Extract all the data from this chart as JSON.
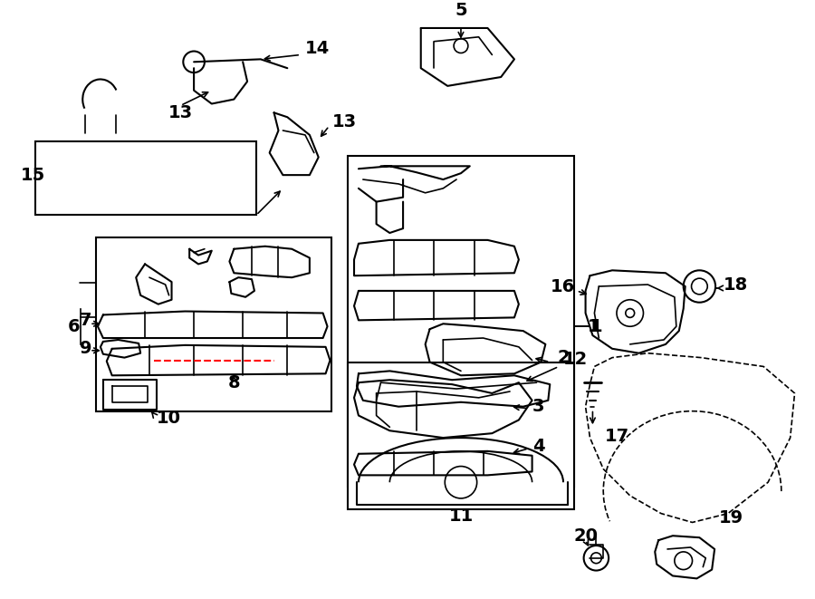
{
  "bg_color": "#ffffff",
  "line_color": "#000000",
  "fig_width": 9.0,
  "fig_height": 6.61,
  "dpi": 100,
  "label_fontsize": 14,
  "label_fontweight": "bold"
}
